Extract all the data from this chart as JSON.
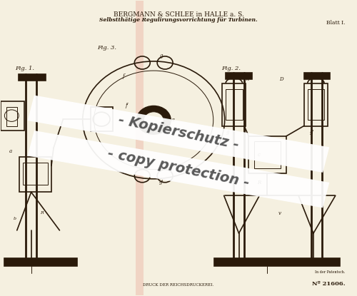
{
  "bg_color": "#f5f0e0",
  "page_bg": "#f5f0e0",
  "line_color": "#2a1a0a",
  "title_line1": "BERGMANN & SCHLEE in HALLE a. S.",
  "title_line2": "Selbstthätige Regulirungsvorrichtung für Turbinen.",
  "blatt": "Blatt I.",
  "patent_number": "Nº 21606.",
  "printer_text": "DRUCK DER REICHSDRUCKEREI.",
  "watermark_line1": "- Kopierschutz -",
  "watermark_line2": "- copy protection -",
  "stripe_color": "#e8a090",
  "watermark_bg": "#ffffff",
  "watermark_color": "#222222"
}
